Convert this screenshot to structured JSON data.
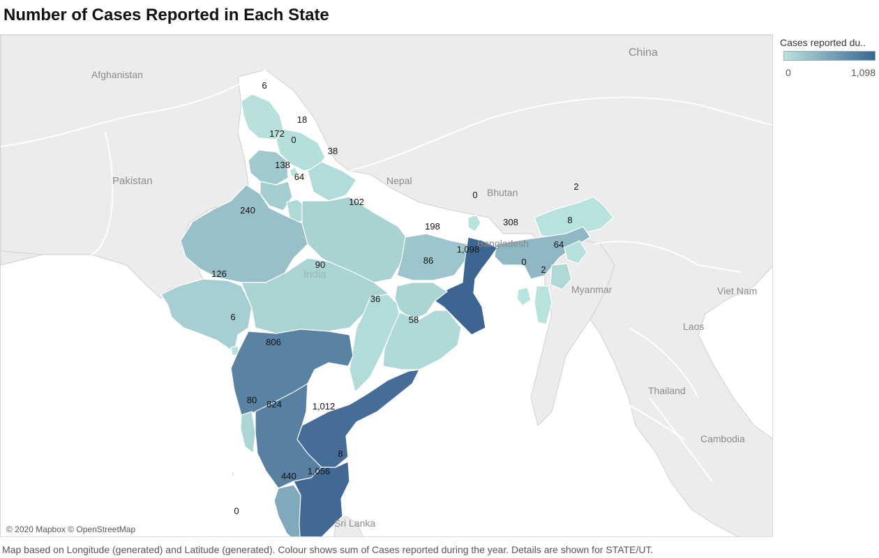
{
  "title": "Number of Cases Reported in Each State",
  "legend": {
    "title": "Cases reported du..",
    "min_label": "0",
    "max_label": "1,098",
    "min_value": 0,
    "max_value": 1098,
    "color_low": "#b9e3dd",
    "color_high": "#3d6592"
  },
  "caption": "Map based on Longitude (generated) and Latitude (generated).  Colour shows sum of Cases reported during the year.  Details are shown for STATE/UT.",
  "attribution": "© 2020 Mapbox © OpenStreetMap",
  "countries": [
    "China",
    "Afghanistan",
    "Pakistan",
    "Nepal",
    "Bhutan",
    "Bangladesh",
    "India",
    "Myanmar",
    "Viet Nam",
    "Laos",
    "Thailand",
    "Cambodia",
    "Sri Lanka"
  ],
  "map_data": {
    "measure": "Cases reported during the year",
    "region_values": [
      {
        "label": "6",
        "value": 6
      },
      {
        "label": "18",
        "value": 18
      },
      {
        "label": "172",
        "value": 172
      },
      {
        "label": "0",
        "value": 0
      },
      {
        "label": "38",
        "value": 38
      },
      {
        "label": "138",
        "value": 138
      },
      {
        "label": "64",
        "value": 64
      },
      {
        "label": "240",
        "value": 240
      },
      {
        "label": "102",
        "value": 102
      },
      {
        "label": "0",
        "value": 0
      },
      {
        "label": "2",
        "value": 2
      },
      {
        "label": "308",
        "value": 308
      },
      {
        "label": "8",
        "value": 8
      },
      {
        "label": "198",
        "value": 198
      },
      {
        "label": "1,098",
        "value": 1098
      },
      {
        "label": "64",
        "value": 64
      },
      {
        "label": "0",
        "value": 0
      },
      {
        "label": "2",
        "value": 2
      },
      {
        "label": "126",
        "value": 126
      },
      {
        "label": "90",
        "value": 90
      },
      {
        "label": "86",
        "value": 86
      },
      {
        "label": "36",
        "value": 36
      },
      {
        "label": "58",
        "value": 58
      },
      {
        "label": "6",
        "value": 6
      },
      {
        "label": "806",
        "value": 806
      },
      {
        "label": "80",
        "value": 80
      },
      {
        "label": "824",
        "value": 824
      },
      {
        "label": "1,012",
        "value": 1012
      },
      {
        "label": "8",
        "value": 8
      },
      {
        "label": "440",
        "value": 440
      },
      {
        "label": "1,056",
        "value": 1056
      },
      {
        "label": "0",
        "value": 0
      }
    ]
  }
}
